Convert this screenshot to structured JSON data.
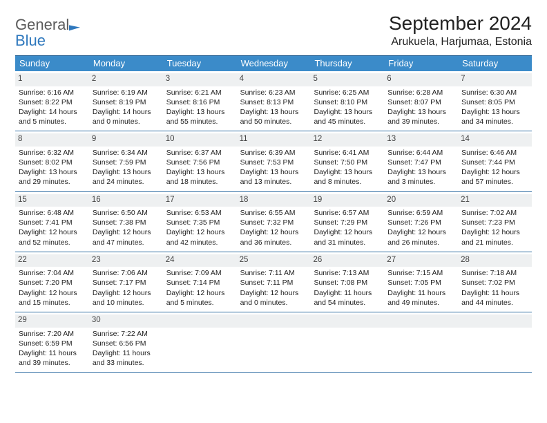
{
  "logo": {
    "text_top": "General",
    "text_bottom": "Blue"
  },
  "header": {
    "month_title": "September 2024",
    "location": "Arukuela, Harjumaa, Estonia"
  },
  "dow": [
    "Sunday",
    "Monday",
    "Tuesday",
    "Wednesday",
    "Thursday",
    "Friday",
    "Saturday"
  ],
  "colors": {
    "header_bar": "#3b8bc9",
    "header_bar_text": "#ffffff",
    "daynum_bg": "#eef0f1",
    "week_divider": "#2f6da3",
    "logo_blue": "#2f78bd",
    "logo_gray": "#5b5b5b"
  },
  "weeks": [
    [
      {
        "n": "1",
        "sunrise": "6:16 AM",
        "sunset": "8:22 PM",
        "dl": "14 hours and 5 minutes."
      },
      {
        "n": "2",
        "sunrise": "6:19 AM",
        "sunset": "8:19 PM",
        "dl": "14 hours and 0 minutes."
      },
      {
        "n": "3",
        "sunrise": "6:21 AM",
        "sunset": "8:16 PM",
        "dl": "13 hours and 55 minutes."
      },
      {
        "n": "4",
        "sunrise": "6:23 AM",
        "sunset": "8:13 PM",
        "dl": "13 hours and 50 minutes."
      },
      {
        "n": "5",
        "sunrise": "6:25 AM",
        "sunset": "8:10 PM",
        "dl": "13 hours and 45 minutes."
      },
      {
        "n": "6",
        "sunrise": "6:28 AM",
        "sunset": "8:07 PM",
        "dl": "13 hours and 39 minutes."
      },
      {
        "n": "7",
        "sunrise": "6:30 AM",
        "sunset": "8:05 PM",
        "dl": "13 hours and 34 minutes."
      }
    ],
    [
      {
        "n": "8",
        "sunrise": "6:32 AM",
        "sunset": "8:02 PM",
        "dl": "13 hours and 29 minutes."
      },
      {
        "n": "9",
        "sunrise": "6:34 AM",
        "sunset": "7:59 PM",
        "dl": "13 hours and 24 minutes."
      },
      {
        "n": "10",
        "sunrise": "6:37 AM",
        "sunset": "7:56 PM",
        "dl": "13 hours and 18 minutes."
      },
      {
        "n": "11",
        "sunrise": "6:39 AM",
        "sunset": "7:53 PM",
        "dl": "13 hours and 13 minutes."
      },
      {
        "n": "12",
        "sunrise": "6:41 AM",
        "sunset": "7:50 PM",
        "dl": "13 hours and 8 minutes."
      },
      {
        "n": "13",
        "sunrise": "6:44 AM",
        "sunset": "7:47 PM",
        "dl": "13 hours and 3 minutes."
      },
      {
        "n": "14",
        "sunrise": "6:46 AM",
        "sunset": "7:44 PM",
        "dl": "12 hours and 57 minutes."
      }
    ],
    [
      {
        "n": "15",
        "sunrise": "6:48 AM",
        "sunset": "7:41 PM",
        "dl": "12 hours and 52 minutes."
      },
      {
        "n": "16",
        "sunrise": "6:50 AM",
        "sunset": "7:38 PM",
        "dl": "12 hours and 47 minutes."
      },
      {
        "n": "17",
        "sunrise": "6:53 AM",
        "sunset": "7:35 PM",
        "dl": "12 hours and 42 minutes."
      },
      {
        "n": "18",
        "sunrise": "6:55 AM",
        "sunset": "7:32 PM",
        "dl": "12 hours and 36 minutes."
      },
      {
        "n": "19",
        "sunrise": "6:57 AM",
        "sunset": "7:29 PM",
        "dl": "12 hours and 31 minutes."
      },
      {
        "n": "20",
        "sunrise": "6:59 AM",
        "sunset": "7:26 PM",
        "dl": "12 hours and 26 minutes."
      },
      {
        "n": "21",
        "sunrise": "7:02 AM",
        "sunset": "7:23 PM",
        "dl": "12 hours and 21 minutes."
      }
    ],
    [
      {
        "n": "22",
        "sunrise": "7:04 AM",
        "sunset": "7:20 PM",
        "dl": "12 hours and 15 minutes."
      },
      {
        "n": "23",
        "sunrise": "7:06 AM",
        "sunset": "7:17 PM",
        "dl": "12 hours and 10 minutes."
      },
      {
        "n": "24",
        "sunrise": "7:09 AM",
        "sunset": "7:14 PM",
        "dl": "12 hours and 5 minutes."
      },
      {
        "n": "25",
        "sunrise": "7:11 AM",
        "sunset": "7:11 PM",
        "dl": "12 hours and 0 minutes."
      },
      {
        "n": "26",
        "sunrise": "7:13 AM",
        "sunset": "7:08 PM",
        "dl": "11 hours and 54 minutes."
      },
      {
        "n": "27",
        "sunrise": "7:15 AM",
        "sunset": "7:05 PM",
        "dl": "11 hours and 49 minutes."
      },
      {
        "n": "28",
        "sunrise": "7:18 AM",
        "sunset": "7:02 PM",
        "dl": "11 hours and 44 minutes."
      }
    ],
    [
      {
        "n": "29",
        "sunrise": "7:20 AM",
        "sunset": "6:59 PM",
        "dl": "11 hours and 39 minutes."
      },
      {
        "n": "30",
        "sunrise": "7:22 AM",
        "sunset": "6:56 PM",
        "dl": "11 hours and 33 minutes."
      },
      {
        "empty": true
      },
      {
        "empty": true
      },
      {
        "empty": true
      },
      {
        "empty": true
      },
      {
        "empty": true
      }
    ]
  ],
  "labels": {
    "sunrise": "Sunrise:",
    "sunset": "Sunset:",
    "daylight": "Daylight:"
  }
}
